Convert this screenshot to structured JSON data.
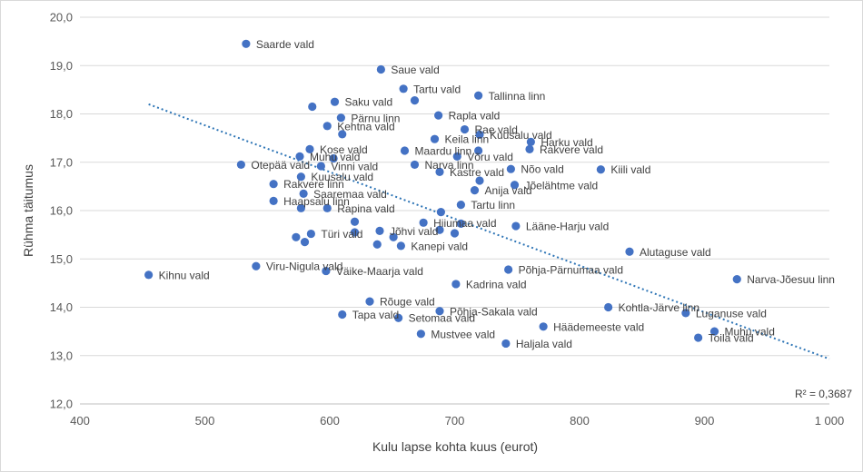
{
  "chart_data": {
    "type": "scatter",
    "xlabel": "Kulu lapse kohta kuus (eurot)",
    "ylabel": "Rühma täitumus",
    "xlim": [
      400,
      1000
    ],
    "ylim": [
      12,
      20
    ],
    "xticks": [
      "400",
      "500",
      "600",
      "700",
      "800",
      "900",
      "1 000"
    ],
    "yticks": [
      "12,0",
      "13,0",
      "14,0",
      "15,0",
      "16,0",
      "17,0",
      "18,0",
      "19,0",
      "20,0"
    ],
    "grid": "horizontal",
    "point_color": "#4472C4",
    "trendline": {
      "x": [
        455,
        1000
      ],
      "y": [
        18.2,
        12.93
      ],
      "color": "#2E75B6",
      "style": "dotted"
    },
    "r2_label": "R² = 0,3687",
    "points": [
      {
        "x": 533,
        "y": 19.45,
        "label": "Saarde vald"
      },
      {
        "x": 641,
        "y": 18.92,
        "label": "Saue vald"
      },
      {
        "x": 659,
        "y": 18.52,
        "label": "Tartu vald"
      },
      {
        "x": 719,
        "y": 18.38,
        "label": "Tallinna linn"
      },
      {
        "x": 668,
        "y": 18.28,
        "label": ""
      },
      {
        "x": 604,
        "y": 18.25,
        "label": "Saku vald"
      },
      {
        "x": 586,
        "y": 18.15,
        "label": ""
      },
      {
        "x": 687,
        "y": 17.97,
        "label": "Rapla vald"
      },
      {
        "x": 609,
        "y": 17.92,
        "label": "Pärnu linn"
      },
      {
        "x": 598,
        "y": 17.75,
        "label": "Kehtna vald"
      },
      {
        "x": 708,
        "y": 17.68,
        "label": "Rae vald"
      },
      {
        "x": 720,
        "y": 17.57,
        "label": "Kuusalu vald"
      },
      {
        "x": 610,
        "y": 17.58,
        "label": ""
      },
      {
        "x": 684,
        "y": 17.48,
        "label": "Keila linn"
      },
      {
        "x": 761,
        "y": 17.42,
        "label": "Harku vald"
      },
      {
        "x": 760,
        "y": 17.27,
        "label": "Rakvere vald"
      },
      {
        "x": 584,
        "y": 17.27,
        "label": "Kose vald"
      },
      {
        "x": 660,
        "y": 17.24,
        "label": "Maardu linn"
      },
      {
        "x": 719,
        "y": 17.24,
        "label": ""
      },
      {
        "x": 702,
        "y": 17.12,
        "label": "Võru vald"
      },
      {
        "x": 576,
        "y": 17.12,
        "label": "Muhu vald"
      },
      {
        "x": 603,
        "y": 17.08,
        "label": ""
      },
      {
        "x": 529,
        "y": 16.95,
        "label": "Otepää vald"
      },
      {
        "x": 593,
        "y": 16.92,
        "label": "Vinni vald"
      },
      {
        "x": 668,
        "y": 16.95,
        "label": "Narva linn"
      },
      {
        "x": 745,
        "y": 16.86,
        "label": "Nõo vald"
      },
      {
        "x": 817,
        "y": 16.85,
        "label": "Kiili vald"
      },
      {
        "x": 688,
        "y": 16.8,
        "label": "Kastre vald"
      },
      {
        "x": 577,
        "y": 16.7,
        "label": "Kuusalu vald"
      },
      {
        "x": 720,
        "y": 16.62,
        "label": ""
      },
      {
        "x": 555,
        "y": 16.55,
        "label": "Rakvere linn"
      },
      {
        "x": 748,
        "y": 16.53,
        "label": "Jõelähtme vald"
      },
      {
        "x": 716,
        "y": 16.42,
        "label": "Anija vald"
      },
      {
        "x": 579,
        "y": 16.35,
        "label": "Saaremaa vald"
      },
      {
        "x": 555,
        "y": 16.2,
        "label": "Haapsalu linn"
      },
      {
        "x": 705,
        "y": 16.12,
        "label": "Tartu linn"
      },
      {
        "x": 577,
        "y": 16.05,
        "label": ""
      },
      {
        "x": 598,
        "y": 16.05,
        "label": "Rapina vald"
      },
      {
        "x": 689,
        "y": 15.97,
        "label": ""
      },
      {
        "x": 620,
        "y": 15.77,
        "label": ""
      },
      {
        "x": 675,
        "y": 15.75,
        "label": "Hiiumaa vald"
      },
      {
        "x": 705,
        "y": 15.73,
        "label": ""
      },
      {
        "x": 749,
        "y": 15.68,
        "label": "Lääne-Harju vald"
      },
      {
        "x": 688,
        "y": 15.6,
        "label": ""
      },
      {
        "x": 640,
        "y": 15.58,
        "label": "Jõhvi vald"
      },
      {
        "x": 620,
        "y": 15.55,
        "label": ""
      },
      {
        "x": 700,
        "y": 15.53,
        "label": ""
      },
      {
        "x": 585,
        "y": 15.52,
        "label": "Türi vald"
      },
      {
        "x": 573,
        "y": 15.45,
        "label": ""
      },
      {
        "x": 651,
        "y": 15.45,
        "label": ""
      },
      {
        "x": 580,
        "y": 15.35,
        "label": ""
      },
      {
        "x": 638,
        "y": 15.3,
        "label": ""
      },
      {
        "x": 657,
        "y": 15.27,
        "label": "Kanepi vald"
      },
      {
        "x": 840,
        "y": 15.15,
        "label": "Alutaguse vald"
      },
      {
        "x": 541,
        "y": 14.85,
        "label": "Viru-Nigula vald"
      },
      {
        "x": 743,
        "y": 14.78,
        "label": "Põhja-Pärnumaa vald"
      },
      {
        "x": 597,
        "y": 14.75,
        "label": "Väike-Maarja vald"
      },
      {
        "x": 455,
        "y": 14.67,
        "label": "Kihnu vald"
      },
      {
        "x": 926,
        "y": 14.58,
        "label": "Narva-Jõesuu linn"
      },
      {
        "x": 701,
        "y": 14.48,
        "label": "Kadrina vald"
      },
      {
        "x": 632,
        "y": 14.12,
        "label": "Rõuge vald"
      },
      {
        "x": 823,
        "y": 14.0,
        "label": "Kohtla-Järve linn"
      },
      {
        "x": 688,
        "y": 13.92,
        "label": "Põhja-Sakala vald"
      },
      {
        "x": 885,
        "y": 13.88,
        "label": "Luganuse vald"
      },
      {
        "x": 610,
        "y": 13.85,
        "label": "Tapa vald"
      },
      {
        "x": 655,
        "y": 13.78,
        "label": "Setomaa vald"
      },
      {
        "x": 771,
        "y": 13.6,
        "label": "Häädemeeste vald"
      },
      {
        "x": 908,
        "y": 13.5,
        "label": "Muhu vald"
      },
      {
        "x": 673,
        "y": 13.45,
        "label": "Mustvee vald"
      },
      {
        "x": 895,
        "y": 13.37,
        "label": "Toila vald"
      },
      {
        "x": 741,
        "y": 13.25,
        "label": "Haljala vald"
      }
    ]
  }
}
